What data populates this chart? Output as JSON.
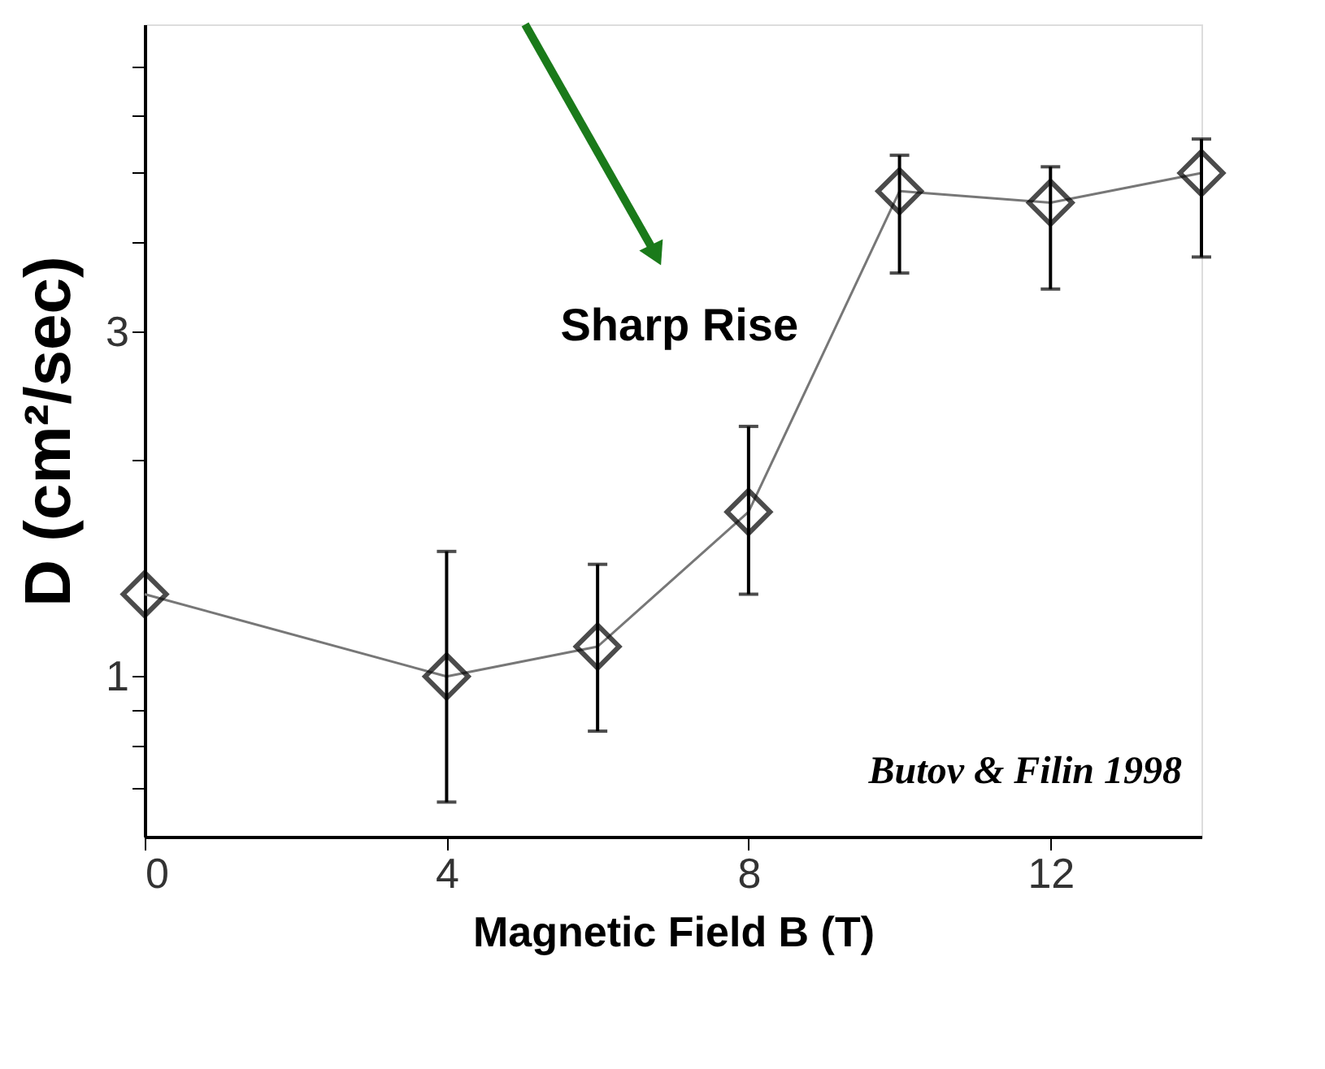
{
  "chart_data": {
    "type": "line",
    "xlabel": "Magnetic Field B (T)",
    "ylabel": "D (cm²/sec)",
    "x": [
      0,
      4,
      6,
      8,
      10,
      12,
      14
    ],
    "series": [
      {
        "color": "#000000",
        "values": [
          1.3,
          1.0,
          1.1,
          1.69,
          4.7,
          4.53,
          4.98
        ],
        "errors": [
          null,
          [
            0.67,
            1.49
          ],
          [
            0.84,
            1.43
          ],
          [
            1.3,
            2.22
          ],
          [
            3.62,
            5.27
          ],
          [
            3.44,
            5.08
          ],
          [
            3.81,
            5.55
          ]
        ]
      }
    ],
    "xlim": [
      0,
      14
    ],
    "xticks": [
      0,
      4,
      8,
      12
    ],
    "ylim": [
      0.6,
      8
    ],
    "log": true,
    "yticks": [
      {
        "value": 0.7,
        "label": null
      },
      {
        "value": 0.8,
        "label": null
      },
      {
        "value": 0.9,
        "label": null
      },
      1,
      {
        "value": 2,
        "label": null
      },
      3,
      {
        "value": 4,
        "label": null
      },
      {
        "value": 5,
        "label": null
      },
      {
        "value": 6,
        "label": null
      },
      {
        "value": 7,
        "label": null
      }
    ],
    "marker": "diamond",
    "line_style": "solid",
    "grid": false,
    "annotations": [
      "Sharp Rise",
      "Butov & Filin 1998"
    ]
  }
}
